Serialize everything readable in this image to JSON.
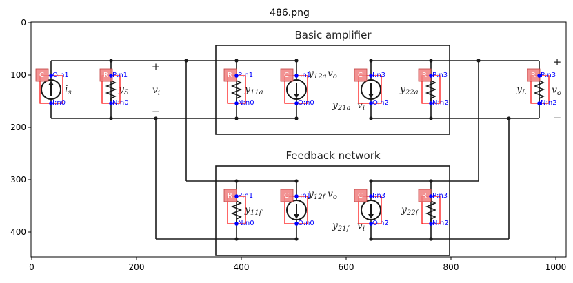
{
  "title": "486.png",
  "axes": {
    "x_ticks": [
      "0",
      "200",
      "400",
      "600",
      "800",
      "1000"
    ],
    "y_ticks": [
      "0",
      "100",
      "200",
      "300",
      "400"
    ]
  },
  "diagram": {
    "top_box_title": "Basic amplifier",
    "bottom_box_title": "Feedback network",
    "signs": {
      "plus": "+",
      "minus": "−"
    },
    "labels": {
      "is": "i",
      "is_sub": "s",
      "yS": "y",
      "yS_sub": "S",
      "vi_left": "v",
      "vi_left_sub": "i",
      "y11a": "y",
      "y11a_sub": "11a",
      "y12a": "y",
      "y12a_sub": "12a",
      "vo_top": "v",
      "vo_top_sub": "o",
      "y21a": "y",
      "y21a_sub": "21a",
      "vi_top": "v",
      "vi_top_sub": "i",
      "y22a": "y",
      "y22a_sub": "22a",
      "yL": "y",
      "yL_sub": "L",
      "vo_right": "v",
      "vo_right_sub": "o",
      "y11f": "y",
      "y11f_sub": "11f",
      "y12f": "y",
      "y12f_sub": "12f",
      "vo_bottom": "v",
      "vo_bottom_sub": "o",
      "y21f": "y",
      "y21f_sub": "21f",
      "vi_bottom": "v",
      "vi_bottom_sub": "i",
      "y22f": "y",
      "y22f_sub": "22f"
    },
    "annotations": [
      {
        "type": "C",
        "pins": [
          "O:n1",
          "I:n0"
        ]
      },
      {
        "type": "R",
        "pins": [
          "P:n1",
          "N:n0"
        ]
      },
      {
        "type": "R",
        "pins": [
          "P:n1",
          "N:n0"
        ]
      },
      {
        "type": "C",
        "pins": [
          "I:n1",
          "O:n0"
        ]
      },
      {
        "type": "C",
        "pins": [
          "I:n3",
          "O:n2"
        ]
      },
      {
        "type": "R",
        "pins": [
          "P:n3",
          "N:n2"
        ]
      },
      {
        "type": "R",
        "pins": [
          "P:n3",
          "N:n2"
        ]
      },
      {
        "type": "R",
        "pins": [
          "P:n1",
          "N:n0"
        ]
      },
      {
        "type": "C",
        "pins": [
          "I:n1",
          "O:n0"
        ]
      },
      {
        "type": "C",
        "pins": [
          "I:n3",
          "O:n2"
        ]
      },
      {
        "type": "R",
        "pins": [
          "P:n3",
          "N:n2"
        ]
      }
    ],
    "colors": {
      "tag_fill": "#f08080",
      "box_stroke": "#ff0000",
      "pin_text": "#0000ff",
      "wire": "#1a1a1a"
    }
  }
}
